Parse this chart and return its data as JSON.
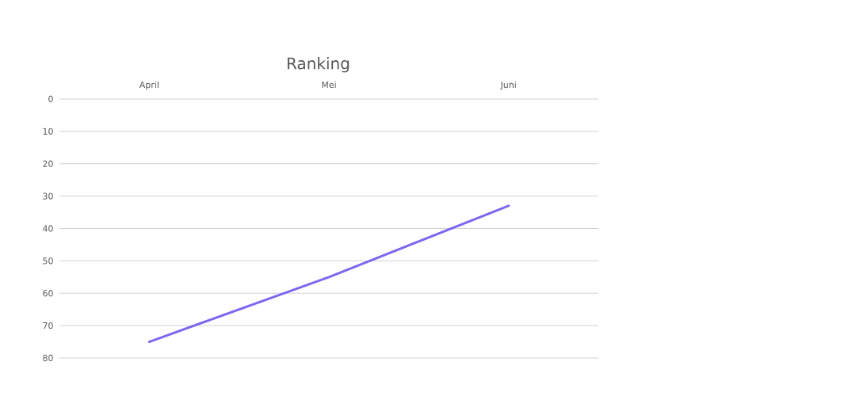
{
  "chart_data": {
    "type": "line",
    "title": "Ranking",
    "categories": [
      "April",
      "Mei",
      "Juni"
    ],
    "series": [
      {
        "color": "#7b68ee",
        "values": [
          75,
          55,
          33
        ]
      }
    ],
    "ylim": [
      80,
      0
    ],
    "yticks": [
      0,
      10,
      20,
      30,
      40,
      50,
      60,
      70,
      80
    ],
    "grid": "y",
    "marker": "none",
    "line_style": "solid"
  }
}
